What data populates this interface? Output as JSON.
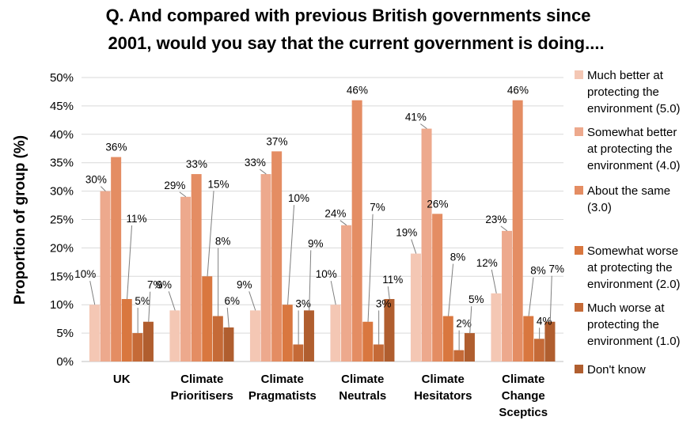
{
  "chart_data": {
    "type": "bar",
    "title": "Q. And compared with previous British governments since 2001, would you say that the current government is doing....",
    "title_lines": [
      "Q. And compared with previous British governments since",
      "2001, would you say that the current government is doing...."
    ],
    "xlabel": "",
    "ylabel": "Proportion of group (%)",
    "ylim": [
      0,
      50
    ],
    "y_ticks": [
      "0%",
      "5%",
      "10%",
      "15%",
      "20%",
      "25%",
      "30%",
      "35%",
      "40%",
      "45%",
      "50%"
    ],
    "grid": true,
    "legend_position": "right",
    "categories": [
      [
        "UK"
      ],
      [
        "Climate",
        "Prioritisers"
      ],
      [
        "Climate",
        "Pragmatists"
      ],
      [
        "Climate",
        "Neutrals"
      ],
      [
        "Climate",
        "Hesitators"
      ],
      [
        "Climate",
        "Change",
        "Sceptics"
      ]
    ],
    "series": [
      {
        "name": "Much better at protecting the environment (5.0)",
        "legend_lines": [
          "Much better at",
          "protecting the",
          "environment (5.0)"
        ],
        "color": "#f4c7b4",
        "values": [
          10,
          9,
          9,
          10,
          19,
          12
        ],
        "labels": [
          "10%",
          "9%",
          "9%",
          "10%",
          "19%",
          "12%"
        ]
      },
      {
        "name": "Somewhat better at protecting the environment (4.0)",
        "legend_lines": [
          "Somewhat better",
          "at protecting the",
          "environment (4.0)"
        ],
        "color": "#eda98d",
        "values": [
          30,
          29,
          33,
          24,
          41,
          23
        ],
        "labels": [
          "30%",
          "29%",
          "33%",
          "24%",
          "41%",
          "23%"
        ]
      },
      {
        "name": "About the same (3.0)",
        "legend_lines": [
          "About the same",
          "(3.0)"
        ],
        "color": "#e48d63",
        "values": [
          36,
          33,
          37,
          46,
          26,
          46
        ],
        "labels": [
          "36%",
          "33%",
          "37%",
          "46%",
          "26%",
          "46%"
        ]
      },
      {
        "name": "Somewhat worse at protecting the environment (2.0)",
        "legend_lines": [
          "Somewhat worse",
          "at protecting the",
          "environment (2.0)"
        ],
        "color": "#d9773f",
        "values": [
          11,
          15,
          10,
          7,
          8,
          8
        ],
        "labels": [
          "11%",
          "15%",
          "10%",
          "7%",
          "8%",
          "8%"
        ]
      },
      {
        "name": "Much worse at protecting the environment (1.0)",
        "legend_lines": [
          "Much worse at",
          "protecting the",
          "environment (1.0)"
        ],
        "color": "#c56a37",
        "values": [
          5,
          8,
          3,
          3,
          2,
          4
        ],
        "labels": [
          "5%",
          "8%",
          "3%",
          "3%",
          "2%",
          "4%"
        ]
      },
      {
        "name": "Don't know",
        "legend_lines": [
          "Don't know"
        ],
        "color": "#b05e2f",
        "values": [
          7,
          6,
          9,
          11,
          5,
          7
        ],
        "labels": [
          "7%",
          "6%",
          "9%",
          "11%",
          "5%",
          "7%"
        ]
      }
    ]
  }
}
